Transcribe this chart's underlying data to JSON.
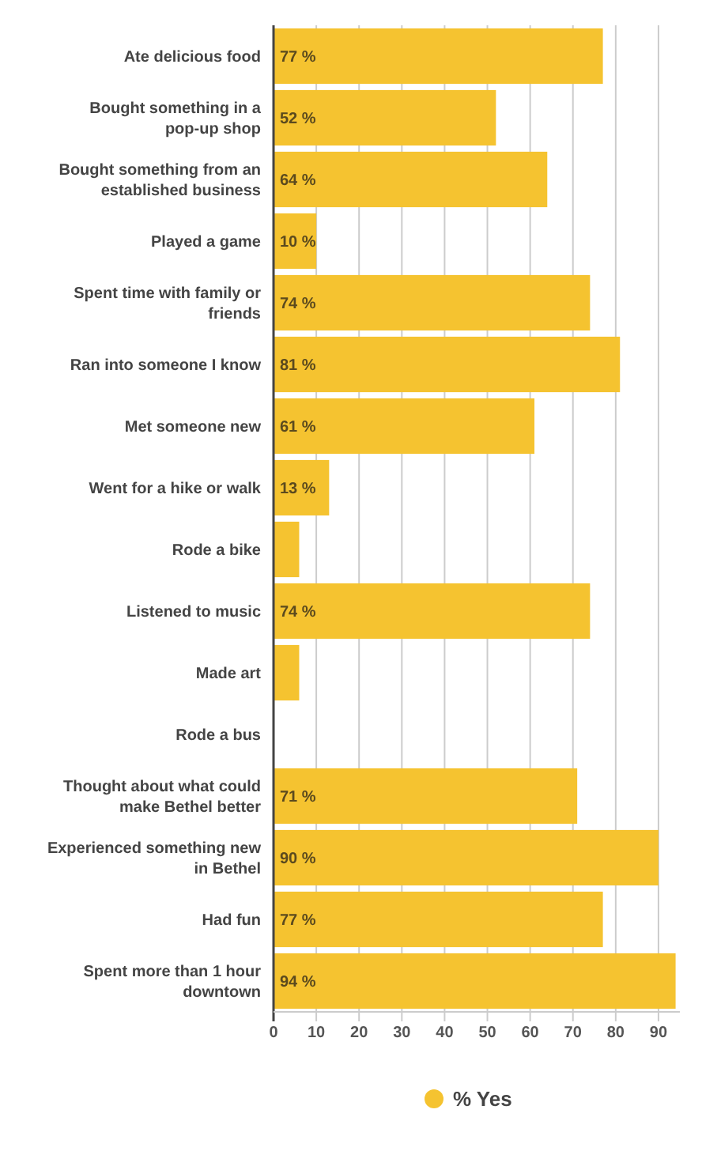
{
  "chart_data": {
    "type": "bar",
    "orientation": "horizontal",
    "categories": [
      "Ate delicious food",
      "Bought something in a pop-up shop",
      "Bought something from an established business",
      "Played a game",
      "Spent time with family or friends",
      "Ran into someone I know",
      "Met someone new",
      "Went for a hike or walk",
      "Rode a bike",
      "Listened to music",
      "Made art",
      "Rode a bus",
      "Thought about what could make Bethel better",
      "Experienced something new in Bethel",
      "Had fun",
      "Spent more than 1 hour downtown"
    ],
    "series": [
      {
        "name": "% Yes",
        "color": "#f5c330",
        "values": [
          77,
          52,
          64,
          10,
          74,
          81,
          61,
          13,
          6,
          74,
          6,
          0,
          71,
          90,
          77,
          94
        ],
        "value_labels": [
          "77 %",
          "52 %",
          "64 %",
          "10 %",
          "74 %",
          "81 %",
          "61 %",
          "13 %",
          null,
          "74 %",
          null,
          null,
          "71 %",
          "90 %",
          "77 %",
          "94 %"
        ]
      }
    ],
    "xlim": [
      0,
      95
    ],
    "xticks": [
      0,
      10,
      20,
      30,
      40,
      50,
      60,
      70,
      80,
      90
    ],
    "grid": "x",
    "legend": "bottom"
  }
}
